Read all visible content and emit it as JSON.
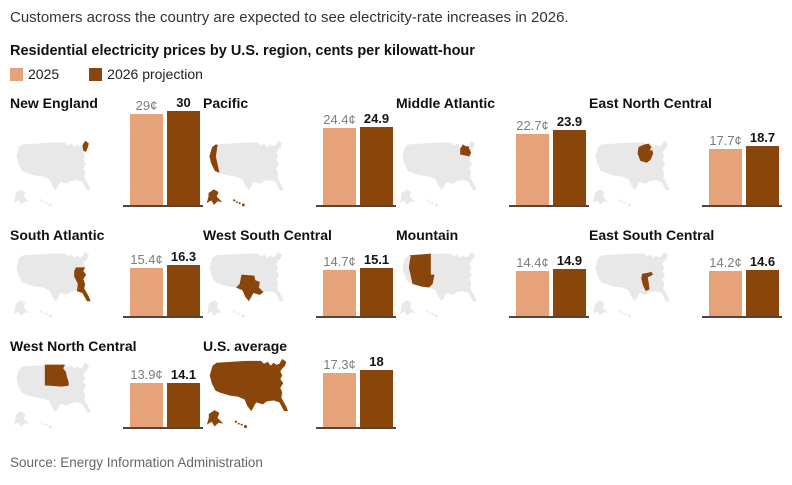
{
  "header": {
    "headline": "Customers across the country are expected to see electricity-rate increases in 2026.",
    "subtitle": "Residential electricity prices by U.S. region, cents per kilowatt-hour"
  },
  "legend": {
    "items": [
      {
        "label": "2025",
        "color": "#E6A379"
      },
      {
        "label": "2026 projection",
        "color": "#8A450B"
      }
    ]
  },
  "colors": {
    "bar2025": "#E6A379",
    "bar2026": "#8A450B",
    "mapgray": "#E8E8E8",
    "baseline": "#54443B"
  },
  "panels": [
    {
      "title": "New England",
      "v2025": 29,
      "v2026": 30,
      "label2025": "29¢",
      "label2026": "30"
    },
    {
      "title": "Pacific",
      "v2025": 24.4,
      "v2026": 24.9,
      "label2025": "24.4¢",
      "label2026": "24.9"
    },
    {
      "title": "Middle Atlantic",
      "v2025": 22.7,
      "v2026": 23.9,
      "label2025": "22.7¢",
      "label2026": "23.9"
    },
    {
      "title": "East North Central",
      "v2025": 17.7,
      "v2026": 18.7,
      "label2025": "17.7¢",
      "label2026": "18.7"
    },
    {
      "title": "South Atlantic",
      "v2025": 15.4,
      "v2026": 16.3,
      "label2025": "15.4¢",
      "label2026": "16.3"
    },
    {
      "title": "West South Central",
      "v2025": 14.7,
      "v2026": 15.1,
      "label2025": "14.7¢",
      "label2026": "15.1"
    },
    {
      "title": "Mountain",
      "v2025": 14.4,
      "v2026": 14.9,
      "label2025": "14.4¢",
      "label2026": "14.9"
    },
    {
      "title": "East South Central",
      "v2025": 14.2,
      "v2026": 14.6,
      "label2025": "14.2¢",
      "label2026": "14.6"
    },
    {
      "title": "West North Central",
      "v2025": 13.9,
      "v2026": 14.1,
      "label2025": "13.9¢",
      "label2026": "14.1"
    },
    {
      "title": "U.S. average",
      "v2025": 17.3,
      "v2026": 18,
      "label2025": "17.3¢",
      "label2026": "18"
    }
  ],
  "source": "Source: Energy Information Administration",
  "chart_data": {
    "type": "bar",
    "title": "Residential electricity prices by U.S. region, cents per kilowatt-hour",
    "subtitle": "Customers across the country are expected to see electricity-rate increases in 2026.",
    "categories": [
      "New England",
      "Pacific",
      "Middle Atlantic",
      "East North Central",
      "South Atlantic",
      "West South Central",
      "Mountain",
      "East South Central",
      "West North Central",
      "U.S. average"
    ],
    "series": [
      {
        "name": "2025",
        "values": [
          29,
          24.4,
          22.7,
          17.7,
          15.4,
          14.7,
          14.4,
          14.2,
          13.9,
          17.3
        ]
      },
      {
        "name": "2026 projection",
        "values": [
          30,
          24.9,
          23.9,
          18.7,
          16.3,
          15.1,
          14.9,
          14.6,
          14.1,
          18
        ]
      }
    ],
    "unit": "cents per kilowatt-hour",
    "ylabel": "cents per kilowatt-hour",
    "ylim": [
      0,
      30
    ],
    "grid": false,
    "legend_position": "top",
    "layout": "small-multiples, 4 columns, map of U.S. with region highlighted per panel",
    "source": "Energy Information Administration"
  }
}
